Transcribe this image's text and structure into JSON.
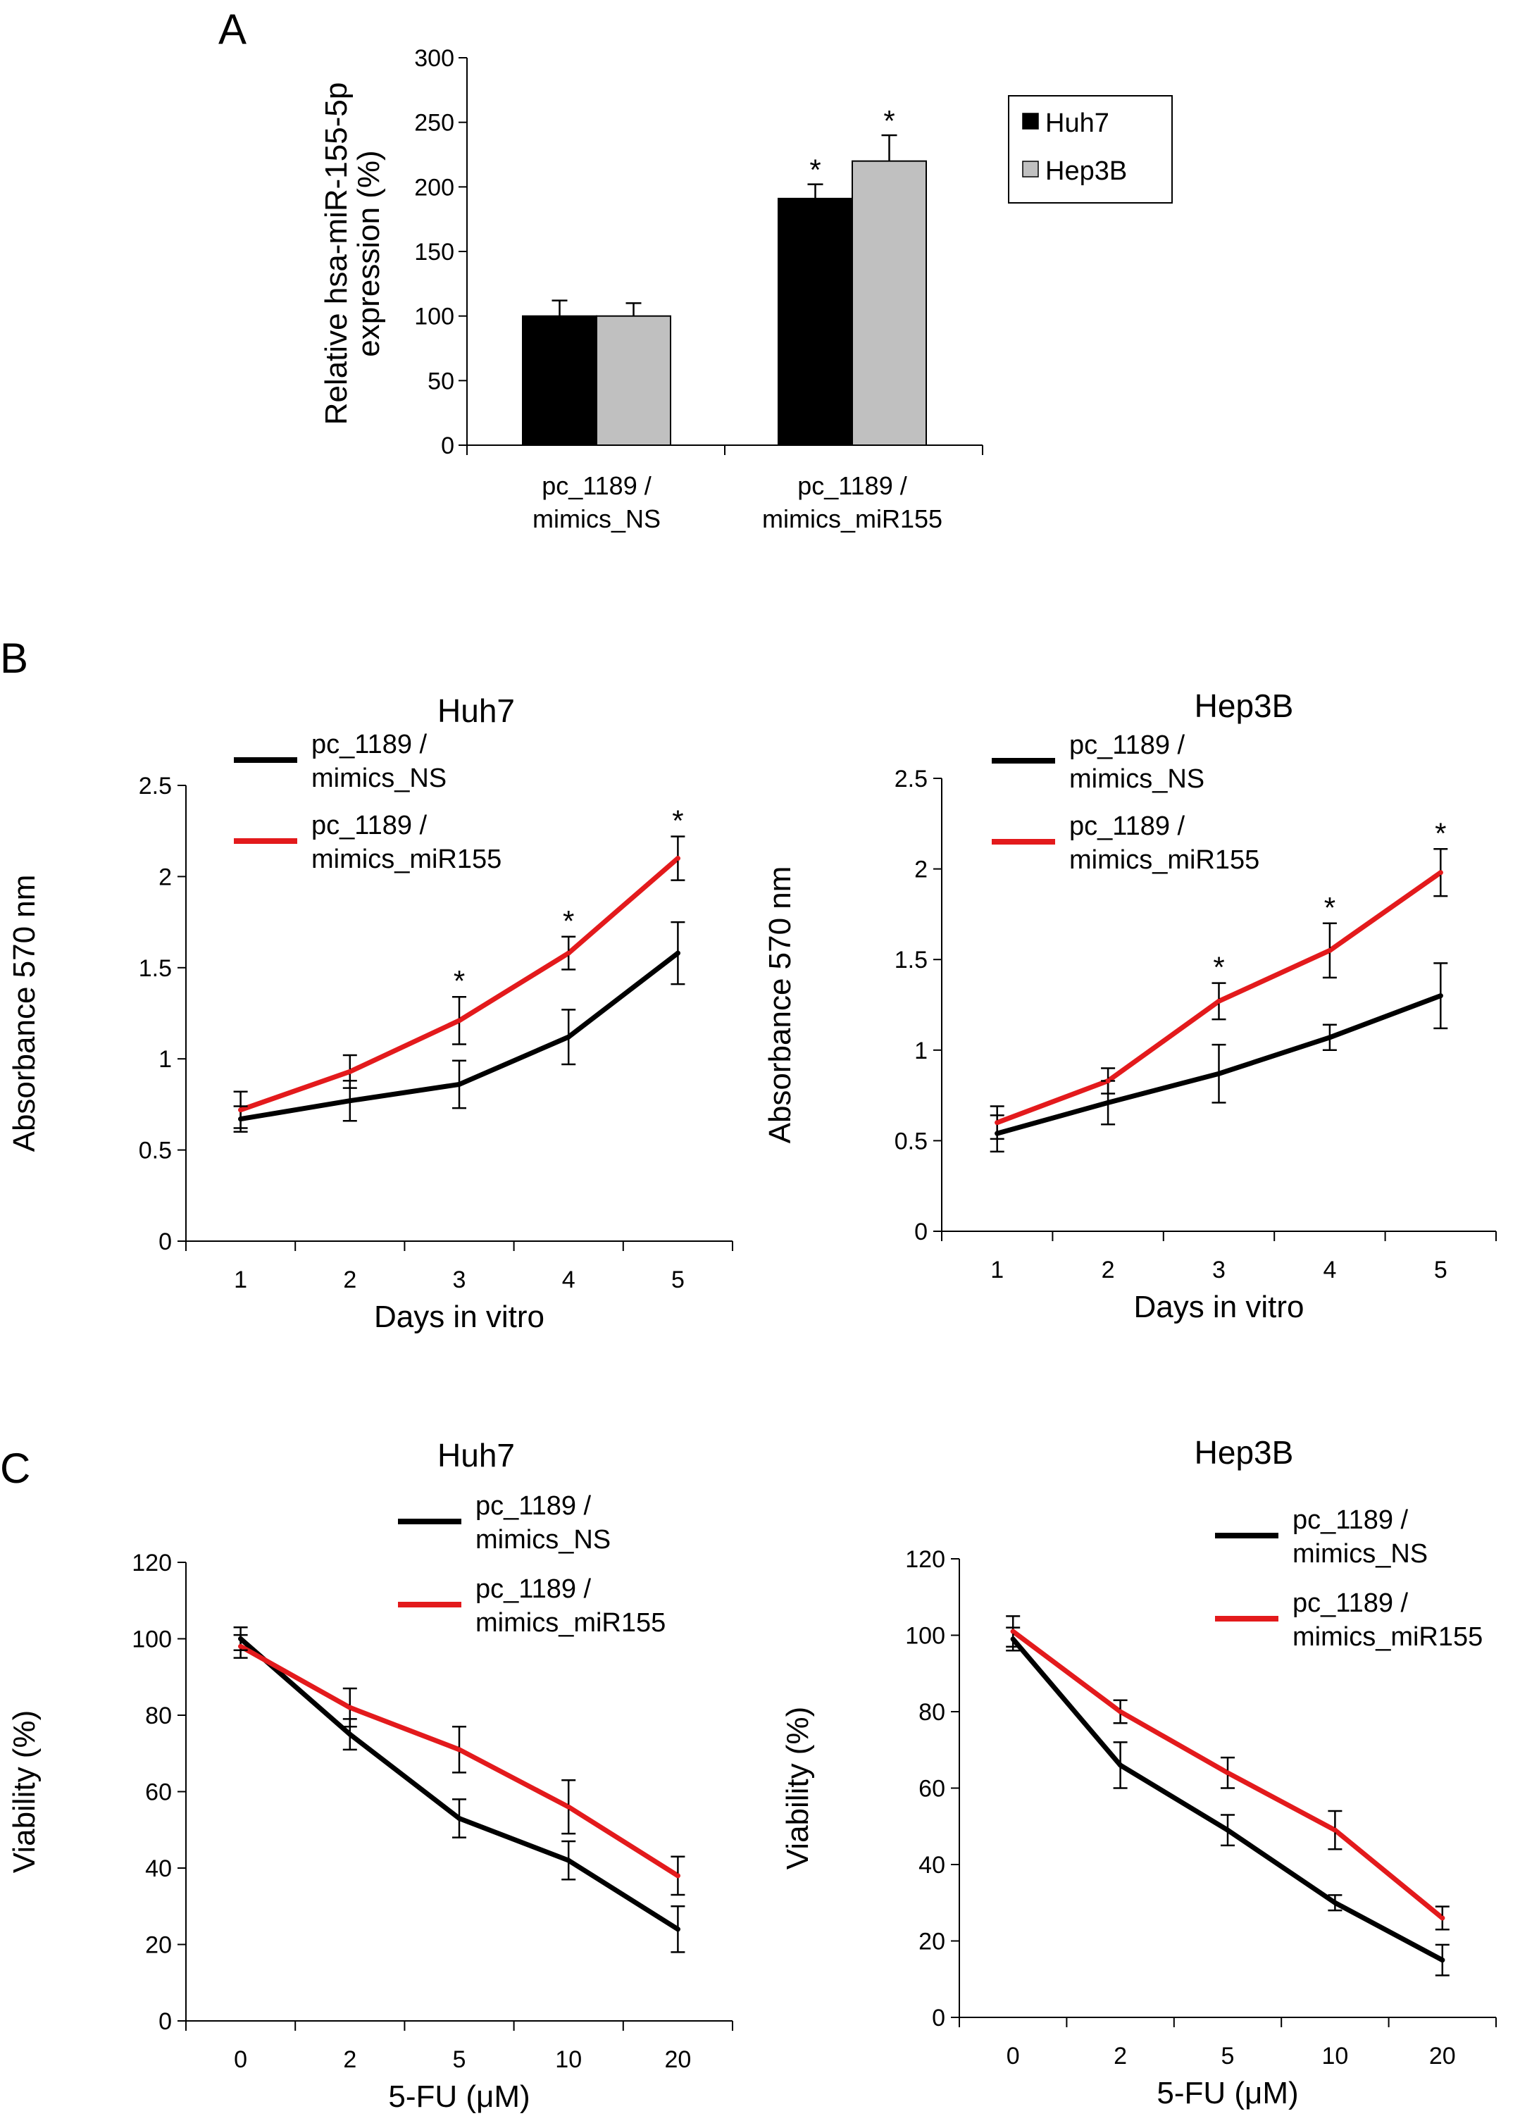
{
  "panels": {
    "a": "A",
    "b": "B",
    "c": "C"
  },
  "chart_data": [
    {
      "id": "A",
      "type": "bar",
      "ylabel": [
        "Relative hsa-miR-155-5p",
        "expression (%)"
      ],
      "categories": [
        [
          "pc_1189 /",
          "mimics_NS"
        ],
        [
          "pc_1189 /",
          "mimics_miR155"
        ]
      ],
      "series": [
        {
          "name": "Huh7",
          "color": "#000000",
          "values": [
            100,
            191
          ],
          "errors": [
            12,
            11
          ],
          "significant": [
            false,
            true
          ]
        },
        {
          "name": "Hep3B",
          "color": "#c0c0c0",
          "values": [
            100,
            220
          ],
          "errors": [
            10,
            20
          ],
          "significant": [
            false,
            true
          ]
        }
      ],
      "ylim": [
        0,
        300
      ],
      "yticks": [
        0,
        50,
        100,
        150,
        200,
        250,
        300
      ],
      "significance_marker": "*",
      "legend": "top-right"
    },
    {
      "id": "B-Huh7",
      "type": "line",
      "title": "Huh7",
      "xlabel": "Days in vitro",
      "ylabel": "Absorbance 570 nm",
      "x": [
        "1",
        "2",
        "3",
        "4",
        "5"
      ],
      "series": [
        {
          "name": [
            "pc_1189 /",
            "mimics_NS"
          ],
          "color": "#000000",
          "values": [
            0.67,
            0.77,
            0.86,
            1.12,
            1.58
          ],
          "errors": [
            0.07,
            0.11,
            0.13,
            0.15,
            0.17
          ]
        },
        {
          "name": [
            "pc_1189 /",
            "mimics_miR155"
          ],
          "color": "#e31a1c",
          "values": [
            0.72,
            0.93,
            1.21,
            1.58,
            2.1
          ],
          "errors": [
            0.1,
            0.09,
            0.13,
            0.09,
            0.12
          ]
        }
      ],
      "significant": [
        false,
        false,
        true,
        true,
        true
      ],
      "ylim": [
        0,
        2.5
      ],
      "yticks": [
        "0",
        "0.5",
        "1",
        "1.5",
        "2",
        "2.5"
      ],
      "significance_marker": "*",
      "legend": "top-left"
    },
    {
      "id": "B-Hep3B",
      "type": "line",
      "title": "Hep3B",
      "xlabel": "Days in vitro",
      "ylabel": "Absorbance 570 nm",
      "x": [
        "1",
        "2",
        "3",
        "4",
        "5"
      ],
      "series": [
        {
          "name": [
            "pc_1189 /",
            "mimics_NS"
          ],
          "color": "#000000",
          "values": [
            0.54,
            0.71,
            0.87,
            1.07,
            1.3
          ],
          "errors": [
            0.1,
            0.12,
            0.16,
            0.07,
            0.18
          ]
        },
        {
          "name": [
            "pc_1189 /",
            "mimics_miR155"
          ],
          "color": "#e31a1c",
          "values": [
            0.6,
            0.83,
            1.27,
            1.55,
            1.98
          ],
          "errors": [
            0.09,
            0.07,
            0.1,
            0.15,
            0.13
          ]
        }
      ],
      "significant": [
        false,
        false,
        true,
        true,
        true
      ],
      "ylim": [
        0,
        2.5
      ],
      "yticks": [
        "0",
        "0.5",
        "1",
        "1.5",
        "2",
        "2.5"
      ],
      "significance_marker": "*",
      "legend": "top-left"
    },
    {
      "id": "C-Huh7",
      "type": "line",
      "title": "Huh7",
      "xlabel": "5-FU (μM)",
      "ylabel": "Viability (%)",
      "x": [
        "0",
        "2",
        "5",
        "10",
        "20"
      ],
      "series": [
        {
          "name": [
            "pc_1189 /",
            "mimics_NS"
          ],
          "color": "#000000",
          "values": [
            100,
            75,
            53,
            42,
            24
          ],
          "errors": [
            3,
            4,
            5,
            5,
            6
          ]
        },
        {
          "name": [
            "pc_1189 /",
            "mimics_miR155"
          ],
          "color": "#e31a1c",
          "values": [
            98,
            82,
            71,
            56,
            38
          ],
          "errors": [
            3,
            5,
            6,
            7,
            5
          ]
        }
      ],
      "significant": [
        false,
        false,
        false,
        false,
        false
      ],
      "ylim": [
        0,
        120
      ],
      "yticks": [
        "0",
        "20",
        "40",
        "60",
        "80",
        "100",
        "120"
      ],
      "legend": "top-right"
    },
    {
      "id": "C-Hep3B",
      "type": "line",
      "title": "Hep3B",
      "xlabel": "5-FU (μM)",
      "ylabel": "Viability (%)",
      "x": [
        "0",
        "2",
        "5",
        "10",
        "20"
      ],
      "series": [
        {
          "name": [
            "pc_1189 /",
            "mimics_NS"
          ],
          "color": "#000000",
          "values": [
            99,
            66,
            49,
            30,
            15
          ],
          "errors": [
            3,
            6,
            4,
            2,
            4
          ]
        },
        {
          "name": [
            "pc_1189 /",
            "mimics_miR155"
          ],
          "color": "#e31a1c",
          "values": [
            101,
            80,
            64,
            49,
            26
          ],
          "errors": [
            4,
            3,
            4,
            5,
            3
          ]
        }
      ],
      "significant": [
        false,
        false,
        false,
        false,
        false
      ],
      "ylim": [
        0,
        120
      ],
      "yticks": [
        "0",
        "20",
        "40",
        "60",
        "80",
        "100",
        "120"
      ],
      "legend": "top-right"
    }
  ]
}
